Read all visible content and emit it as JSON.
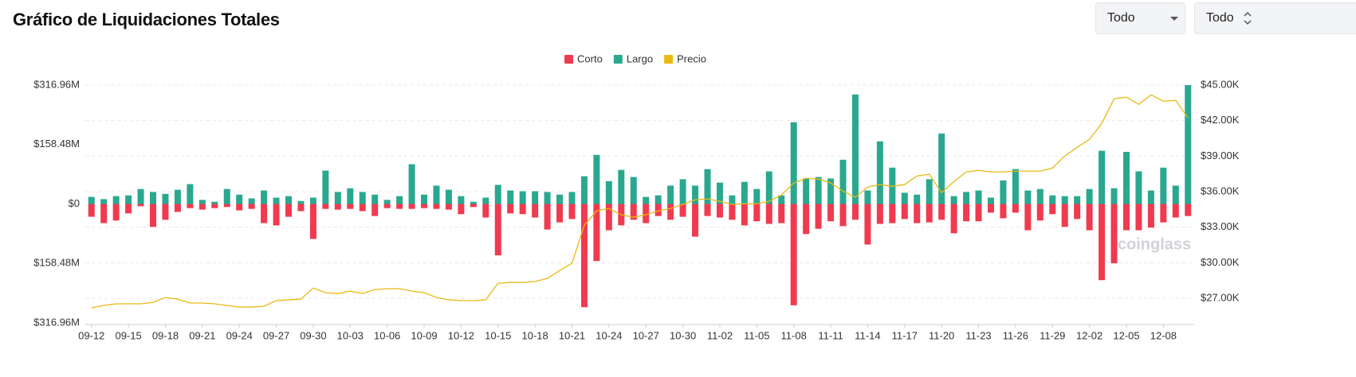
{
  "header": {
    "title": "Gráfico de Liquidaciones Totales"
  },
  "controls": [
    {
      "label": "Todo"
    },
    {
      "label": "Todo"
    }
  ],
  "watermark": "coinglass",
  "chart_data": {
    "type": "bar",
    "categories": [
      "09-12",
      null,
      null,
      "09-15",
      null,
      null,
      "09-18",
      null,
      null,
      "09-21",
      null,
      null,
      "09-24",
      null,
      null,
      "09-27",
      null,
      null,
      "09-30",
      null,
      null,
      "10-03",
      null,
      null,
      "10-06",
      null,
      null,
      "10-09",
      null,
      null,
      "10-12",
      null,
      null,
      "10-15",
      null,
      null,
      "10-18",
      null,
      null,
      "10-21",
      null,
      null,
      "10-24",
      null,
      null,
      "10-27",
      null,
      null,
      "10-30",
      null,
      null,
      "11-02",
      null,
      null,
      "11-05",
      null,
      null,
      "11-08",
      null,
      null,
      "11-11",
      null,
      null,
      "11-14",
      null,
      null,
      "11-17",
      null,
      null,
      "11-20",
      null,
      null,
      "11-23",
      null,
      null,
      "11-26",
      null,
      null,
      "11-29",
      null,
      null,
      "12-02",
      null,
      null,
      "12-05",
      null,
      null,
      "12-08",
      null,
      null
    ],
    "series": [
      {
        "name": "Corto",
        "color": "#f03a4f",
        "values": [
          -34,
          -51,
          -44,
          -25,
          -6,
          -61,
          -42,
          -21,
          -11,
          -15,
          -11,
          -8,
          -17,
          -13,
          -51,
          -57,
          -34,
          -19,
          -93,
          -13,
          -15,
          -13,
          -19,
          -32,
          -11,
          -13,
          -13,
          -11,
          -13,
          -15,
          -27,
          -8,
          -36,
          -137,
          -25,
          -27,
          -36,
          -68,
          -49,
          -40,
          -275,
          -152,
          -70,
          -57,
          -42,
          -51,
          -32,
          -42,
          -34,
          -87,
          -32,
          -36,
          -42,
          -57,
          -46,
          -53,
          -51,
          -270,
          -80,
          -66,
          -46,
          -59,
          -42,
          -108,
          -53,
          -51,
          -40,
          -51,
          -49,
          -42,
          -78,
          -46,
          -46,
          -23,
          -38,
          -23,
          -70,
          -44,
          -27,
          -61,
          -40,
          -70,
          -203,
          -158,
          -70,
          -70,
          -63,
          -49,
          -36,
          -32
        ]
      },
      {
        "name": "Largo",
        "color": "#2aa88f",
        "values": [
          19,
          13,
          21,
          23,
          40,
          32,
          27,
          38,
          53,
          11,
          6,
          40,
          25,
          15,
          36,
          17,
          21,
          8,
          17,
          89,
          32,
          42,
          32,
          25,
          11,
          21,
          106,
          25,
          49,
          38,
          21,
          6,
          17,
          51,
          36,
          34,
          34,
          32,
          25,
          32,
          74,
          131,
          61,
          91,
          72,
          19,
          23,
          49,
          66,
          49,
          93,
          57,
          23,
          59,
          40,
          87,
          23,
          218,
          68,
          72,
          68,
          118,
          292,
          36,
          167,
          97,
          30,
          25,
          66,
          188,
          21,
          32,
          36,
          17,
          63,
          93,
          36,
          40,
          23,
          21,
          21,
          40,
          142,
          42,
          139,
          87,
          36,
          97,
          49,
          317
        ]
      },
      {
        "name": "Precio",
        "color": "#e9b913",
        "type": "line",
        "axis": "y2",
        "values": [
          26190,
          26400,
          26530,
          26530,
          26530,
          26660,
          27070,
          26930,
          26600,
          26600,
          26530,
          26400,
          26260,
          26260,
          26330,
          26800,
          26870,
          26930,
          27870,
          27470,
          27400,
          27600,
          27400,
          27740,
          27810,
          27810,
          27600,
          27470,
          27070,
          26870,
          26800,
          26800,
          26870,
          28270,
          28340,
          28340,
          28410,
          28680,
          29350,
          29950,
          33170,
          34380,
          34580,
          34050,
          33840,
          34050,
          34380,
          34580,
          34920,
          35320,
          35390,
          35190,
          34920,
          34980,
          34980,
          35190,
          35720,
          36730,
          37130,
          37070,
          36730,
          36060,
          35520,
          36390,
          36600,
          36460,
          36600,
          37330,
          37470,
          35920,
          36860,
          37670,
          37800,
          37670,
          37670,
          37740,
          37740,
          37740,
          38000,
          39010,
          39750,
          40420,
          41760,
          43840,
          43980,
          43370,
          44180,
          43640,
          43710,
          42230
        ]
      }
    ],
    "ylim": [
      -316.96,
      316.96
    ],
    "yticks": [
      {
        "value": 316.96,
        "label": "$316.96M"
      },
      {
        "value": 158.48,
        "label": "$158.48M"
      },
      {
        "value": 0,
        "label": "$0"
      },
      {
        "value": -158.48,
        "label": "$158.48M"
      },
      {
        "value": -316.96,
        "label": "$316.96M"
      }
    ],
    "y2lim": [
      24920,
      45000
    ],
    "y2ticks": [
      {
        "value": 27000,
        "label": "$27.00K"
      },
      {
        "value": 30000,
        "label": "$30.00K"
      },
      {
        "value": 33000,
        "label": "$33.00K"
      },
      {
        "value": 36000,
        "label": "$36.00K"
      },
      {
        "value": 39000,
        "label": "$39.00K"
      },
      {
        "value": 42000,
        "label": "$42.00K"
      },
      {
        "value": 45000,
        "label": "$45.00K"
      }
    ],
    "grid": true,
    "legend": "top"
  }
}
